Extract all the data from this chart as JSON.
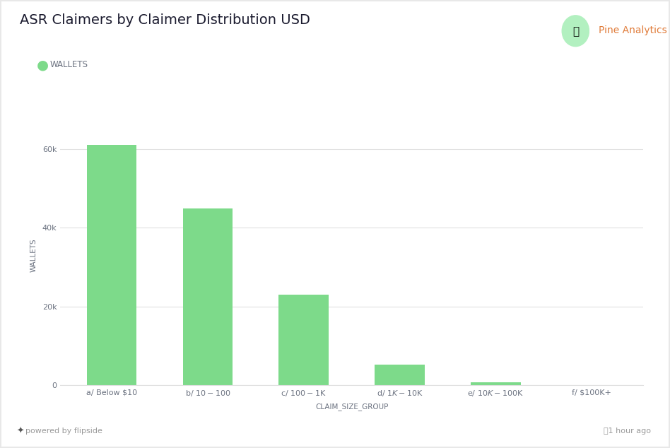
{
  "title": "ASR Claimers by Claimer Distribution USD",
  "branding": "Pine Analytics",
  "legend_label": "WALLETS",
  "xlabel": "CLAIM_SIZE_GROUP",
  "ylabel": "WALLETS",
  "categories": [
    "a/ Below $10",
    "b/ $10 - $100",
    "c/ $100 - $1K",
    "d/ $1K - $10K",
    "e/ $10K - $100K",
    "f/ $100K+"
  ],
  "values": [
    61000,
    45000,
    23000,
    5200,
    800,
    80
  ],
  "bar_color": "#7dda8a",
  "background_color": "#ffffff",
  "grid_color": "#e0e0e0",
  "title_fontsize": 14,
  "title_color": "#1a1a2e",
  "axis_label_fontsize": 7.5,
  "tick_fontsize": 8,
  "legend_color": "#6b7280",
  "branding_color": "#e07b39",
  "ylim": [
    0,
    66000
  ],
  "yticks": [
    0,
    20000,
    40000,
    60000
  ],
  "ytick_labels": [
    "0",
    "20k",
    "40k",
    "60k"
  ],
  "footer_left": "powered by flipside",
  "footer_right": "⌛1 hour ago",
  "pine_icon_color": "#b2f0c0",
  "pine_tree_color": "#2d6a4f"
}
